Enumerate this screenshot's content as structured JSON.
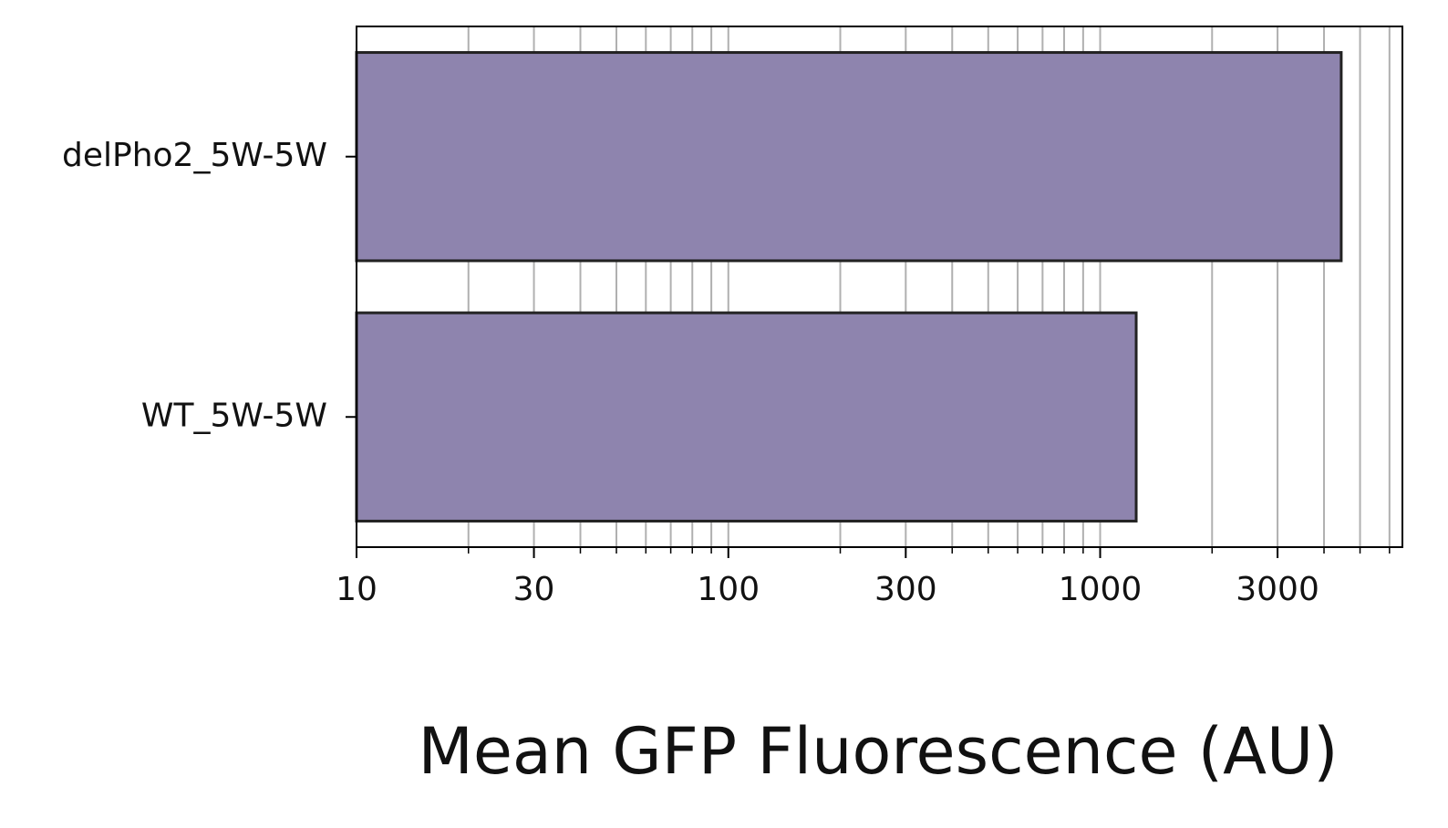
{
  "chart_data": {
    "type": "bar",
    "orientation": "horizontal",
    "categories": [
      "delPho2_5W-5W",
      "WT_5W-5W"
    ],
    "values": [
      4450,
      1250
    ],
    "title": "",
    "xlabel": "Mean GFP Fluorescence (AU)",
    "ylabel": "",
    "xscale": "log",
    "xlim": [
      10,
      6500
    ],
    "xticks": [
      10,
      30,
      100,
      300,
      1000,
      3000
    ],
    "xtick_labels": [
      "10",
      "30",
      "100",
      "300",
      "1000",
      "3000"
    ],
    "grid": "vertical, major and minor",
    "colors": {
      "bar_fill": "#8e84ae",
      "bar_edge": "#222222",
      "grid": "#b0b0b0",
      "axis": "#000000"
    }
  }
}
